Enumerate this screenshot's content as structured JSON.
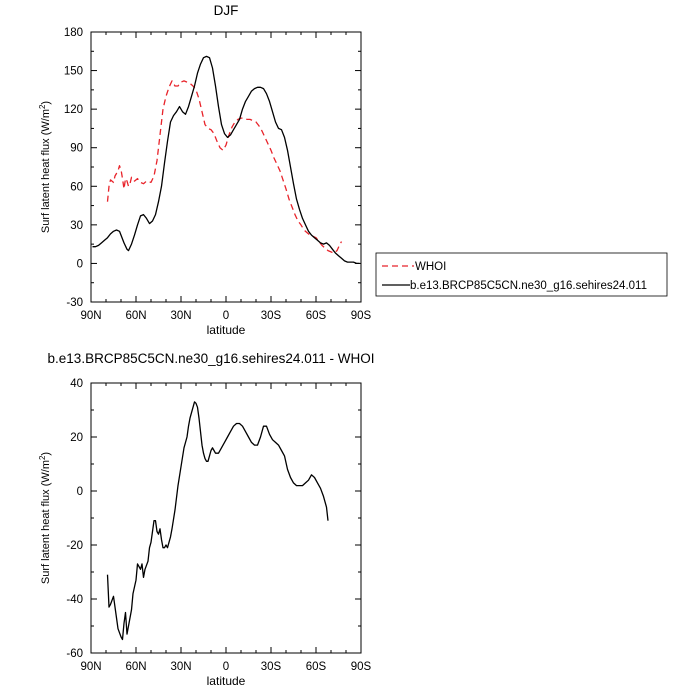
{
  "chart_data": [
    {
      "type": "line",
      "title": "DJF",
      "xlabel": "latitude",
      "ylabel": "Surf latent heat flux (W/m²)",
      "xlim": [
        90,
        -90
      ],
      "ylim": [
        -30,
        180
      ],
      "xticks": [
        90,
        60,
        30,
        0,
        -30,
        -60,
        -90
      ],
      "xtick_labels": [
        "90N",
        "60N",
        "30N",
        "0",
        "30S",
        "60S",
        "90S"
      ],
      "yticks": [
        -30,
        0,
        30,
        60,
        90,
        120,
        150,
        180
      ],
      "ytick_labels": [
        "-30",
        "0",
        "30",
        "60",
        "90",
        "120",
        "150",
        "180"
      ],
      "legend_position": "right",
      "series": [
        {
          "name": "WHOI",
          "color": "#e8232a",
          "dash": "dashed",
          "points": [
            [
              79,
              48
            ],
            [
              78,
              60
            ],
            [
              77,
              65
            ],
            [
              75,
              63
            ],
            [
              74,
              68
            ],
            [
              72,
              72
            ],
            [
              71,
              76
            ],
            [
              70,
              73
            ],
            [
              69,
              66
            ],
            [
              68,
              58
            ],
            [
              67,
              66
            ],
            [
              66,
              64
            ],
            [
              65,
              60
            ],
            [
              64,
              62
            ],
            [
              63,
              67
            ],
            [
              61,
              64
            ],
            [
              59,
              66
            ],
            [
              57,
              63
            ],
            [
              55,
              62
            ],
            [
              53,
              64
            ],
            [
              50,
              63
            ],
            [
              48,
              68
            ],
            [
              46,
              80
            ],
            [
              44,
              100
            ],
            [
              42,
              120
            ],
            [
              40,
              130
            ],
            [
              38,
              137
            ],
            [
              36,
              142
            ],
            [
              34,
              138
            ],
            [
              32,
              138
            ],
            [
              30,
              141
            ],
            [
              28,
              142
            ],
            [
              26,
              141
            ],
            [
              24,
              140
            ],
            [
              22,
              138
            ],
            [
              20,
              135
            ],
            [
              18,
              128
            ],
            [
              16,
              118
            ],
            [
              14,
              108
            ],
            [
              12,
              105
            ],
            [
              10,
              104
            ],
            [
              8,
              101
            ],
            [
              6,
              95
            ],
            [
              4,
              90
            ],
            [
              2,
              88
            ],
            [
              0,
              92
            ],
            [
              -2,
              100
            ],
            [
              -4,
              106
            ],
            [
              -6,
              110
            ],
            [
              -8,
              112
            ],
            [
              -10,
              113
            ],
            [
              -12,
              113
            ],
            [
              -14,
              112
            ],
            [
              -16,
              112
            ],
            [
              -18,
              111
            ],
            [
              -20,
              110
            ],
            [
              -22,
              107
            ],
            [
              -24,
              103
            ],
            [
              -26,
              98
            ],
            [
              -28,
              93
            ],
            [
              -30,
              88
            ],
            [
              -32,
              82
            ],
            [
              -34,
              77
            ],
            [
              -36,
              72
            ],
            [
              -38,
              65
            ],
            [
              -40,
              58
            ],
            [
              -42,
              50
            ],
            [
              -44,
              44
            ],
            [
              -46,
              38
            ],
            [
              -48,
              33
            ],
            [
              -50,
              30
            ],
            [
              -52,
              26
            ],
            [
              -54,
              24
            ],
            [
              -56,
              22
            ],
            [
              -58,
              21
            ],
            [
              -60,
              20
            ],
            [
              -62,
              17
            ],
            [
              -64,
              14
            ],
            [
              -66,
              12
            ],
            [
              -68,
              10
            ],
            [
              -70,
              9
            ],
            [
              -72,
              8
            ],
            [
              -74,
              10
            ],
            [
              -76,
              15
            ],
            [
              -77,
              17
            ]
          ]
        },
        {
          "name": "b.e13.BRCP85C5CN.ne30_g16.sehires24.011",
          "color": "#000000",
          "dash": "solid",
          "points": [
            [
              89,
              13
            ],
            [
              87,
              13
            ],
            [
              85,
              14
            ],
            [
              83,
              16
            ],
            [
              81,
              18
            ],
            [
              79,
              20
            ],
            [
              77,
              23
            ],
            [
              75,
              25
            ],
            [
              73,
              26
            ],
            [
              71,
              25
            ],
            [
              70,
              22
            ],
            [
              68,
              16
            ],
            [
              66,
              11
            ],
            [
              65,
              10
            ],
            [
              63,
              15
            ],
            [
              61,
              22
            ],
            [
              59,
              30
            ],
            [
              57,
              37
            ],
            [
              55,
              38
            ],
            [
              53,
              35
            ],
            [
              51,
              31
            ],
            [
              49,
              33
            ],
            [
              47,
              38
            ],
            [
              45,
              48
            ],
            [
              43,
              60
            ],
            [
              41,
              78
            ],
            [
              39,
              95
            ],
            [
              37,
              110
            ],
            [
              35,
              115
            ],
            [
              33,
              118
            ],
            [
              31,
              122
            ],
            [
              29,
              118
            ],
            [
              27,
              116
            ],
            [
              25,
              122
            ],
            [
              23,
              130
            ],
            [
              21,
              138
            ],
            [
              19,
              148
            ],
            [
              17,
              155
            ],
            [
              15,
              160
            ],
            [
              13,
              161
            ],
            [
              11,
              160
            ],
            [
              9,
              152
            ],
            [
              7,
              138
            ],
            [
              5,
              122
            ],
            [
              3,
              108
            ],
            [
              1,
              101
            ],
            [
              -1,
              98
            ],
            [
              -3,
              100
            ],
            [
              -5,
              104
            ],
            [
              -7,
              108
            ],
            [
              -9,
              112
            ],
            [
              -11,
              120
            ],
            [
              -13,
              126
            ],
            [
              -15,
              130
            ],
            [
              -17,
              134
            ],
            [
              -19,
              136
            ],
            [
              -21,
              137
            ],
            [
              -23,
              137
            ],
            [
              -25,
              136
            ],
            [
              -27,
              132
            ],
            [
              -29,
              126
            ],
            [
              -31,
              118
            ],
            [
              -33,
              110
            ],
            [
              -35,
              105
            ],
            [
              -37,
              104
            ],
            [
              -39,
              98
            ],
            [
              -41,
              88
            ],
            [
              -43,
              75
            ],
            [
              -45,
              62
            ],
            [
              -47,
              50
            ],
            [
              -49,
              42
            ],
            [
              -51,
              35
            ],
            [
              -53,
              30
            ],
            [
              -55,
              25
            ],
            [
              -57,
              22
            ],
            [
              -59,
              20
            ],
            [
              -61,
              18
            ],
            [
              -63,
              16
            ],
            [
              -65,
              15
            ],
            [
              -67,
              16
            ],
            [
              -69,
              14
            ],
            [
              -71,
              11
            ],
            [
              -73,
              8
            ],
            [
              -75,
              6
            ],
            [
              -77,
              4
            ],
            [
              -79,
              2
            ],
            [
              -81,
              1
            ],
            [
              -83,
              1
            ],
            [
              -85,
              1
            ],
            [
              -87,
              0
            ],
            [
              -89,
              0
            ]
          ]
        }
      ]
    },
    {
      "type": "line",
      "title": "b.e13.BRCP85C5CN.ne30_g16.sehires24.011 - WHOI",
      "xlabel": "latitude",
      "ylabel": "Surf latent heat flux (W/m²)",
      "xlim": [
        90,
        -90
      ],
      "ylim": [
        -60,
        40
      ],
      "xticks": [
        90,
        60,
        30,
        0,
        -30,
        -60,
        -90
      ],
      "xtick_labels": [
        "90N",
        "60N",
        "30N",
        "0",
        "30S",
        "60S",
        "90S"
      ],
      "yticks": [
        -60,
        -40,
        -20,
        0,
        20,
        40
      ],
      "ytick_labels": [
        "-60",
        "-40",
        "-20",
        "0",
        "20",
        "40"
      ],
      "series": [
        {
          "color": "#000000",
          "dash": "solid",
          "points": [
            [
              79,
              -31
            ],
            [
              78,
              -43
            ],
            [
              77,
              -42
            ],
            [
              75,
              -39
            ],
            [
              73,
              -47
            ],
            [
              72,
              -51
            ],
            [
              70,
              -54
            ],
            [
              69,
              -55
            ],
            [
              68,
              -49
            ],
            [
              67,
              -45
            ],
            [
              66,
              -53
            ],
            [
              65,
              -50
            ],
            [
              63,
              -44
            ],
            [
              62,
              -38
            ],
            [
              60,
              -33
            ],
            [
              59,
              -27
            ],
            [
              58,
              -28
            ],
            [
              57,
              -29
            ],
            [
              56,
              -27
            ],
            [
              55,
              -32
            ],
            [
              54,
              -29
            ],
            [
              52,
              -26
            ],
            [
              51,
              -21
            ],
            [
              50,
              -19
            ],
            [
              49,
              -15
            ],
            [
              48,
              -11
            ],
            [
              47,
              -11
            ],
            [
              46,
              -15
            ],
            [
              45,
              -16
            ],
            [
              44,
              -14
            ],
            [
              43,
              -18
            ],
            [
              42,
              -21
            ],
            [
              41,
              -21
            ],
            [
              40,
              -20
            ],
            [
              39,
              -21
            ],
            [
              38,
              -19
            ],
            [
              37,
              -17
            ],
            [
              36,
              -14
            ],
            [
              34,
              -7
            ],
            [
              32,
              2
            ],
            [
              30,
              9
            ],
            [
              28,
              16
            ],
            [
              26,
              20
            ],
            [
              25,
              24
            ],
            [
              24,
              27
            ],
            [
              23,
              29
            ],
            [
              22,
              31
            ],
            [
              21,
              33
            ],
            [
              20,
              32.5
            ],
            [
              19,
              31
            ],
            [
              18,
              27
            ],
            [
              17,
              22
            ],
            [
              16,
              17
            ],
            [
              15,
              14
            ],
            [
              14,
              12
            ],
            [
              13,
              11
            ],
            [
              12,
              11
            ],
            [
              11,
              13
            ],
            [
              10,
              15
            ],
            [
              9,
              16
            ],
            [
              8,
              15
            ],
            [
              7,
              14
            ],
            [
              5,
              14
            ],
            [
              3,
              16
            ],
            [
              1,
              18
            ],
            [
              -1,
              20
            ],
            [
              -3,
              22
            ],
            [
              -5,
              24
            ],
            [
              -7,
              25
            ],
            [
              -9,
              25
            ],
            [
              -11,
              24
            ],
            [
              -13,
              22
            ],
            [
              -15,
              20
            ],
            [
              -17,
              18
            ],
            [
              -19,
              17
            ],
            [
              -21,
              17
            ],
            [
              -23,
              20
            ],
            [
              -25,
              24
            ],
            [
              -27,
              24
            ],
            [
              -29,
              21
            ],
            [
              -31,
              19
            ],
            [
              -33,
              18
            ],
            [
              -35,
              17
            ],
            [
              -37,
              15
            ],
            [
              -39,
              13
            ],
            [
              -41,
              8
            ],
            [
              -43,
              5
            ],
            [
              -45,
              3
            ],
            [
              -47,
              2
            ],
            [
              -49,
              2
            ],
            [
              -51,
              2
            ],
            [
              -53,
              3
            ],
            [
              -55,
              4
            ],
            [
              -57,
              6
            ],
            [
              -59,
              5
            ],
            [
              -61,
              3
            ],
            [
              -63,
              1
            ],
            [
              -65,
              -2
            ],
            [
              -67,
              -6
            ],
            [
              -68,
              -11
            ]
          ]
        }
      ]
    }
  ]
}
